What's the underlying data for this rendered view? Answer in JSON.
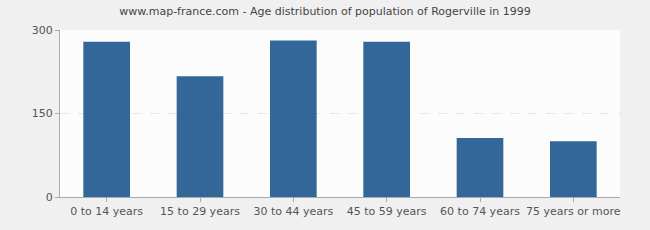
{
  "chart_data": {
    "type": "bar",
    "title": "www.map-france.com - Age distribution of population of Rogerville in 1999",
    "categories": [
      "0 to 14 years",
      "15 to 29 years",
      "30 to 44 years",
      "45 to 59 years",
      "60 to 74 years",
      "75 years or more"
    ],
    "values": [
      279,
      217,
      281,
      279,
      106,
      100
    ],
    "color": "#336699",
    "ylim": [
      0,
      300
    ],
    "yticks": [
      0,
      150,
      300
    ],
    "grid": true
  }
}
